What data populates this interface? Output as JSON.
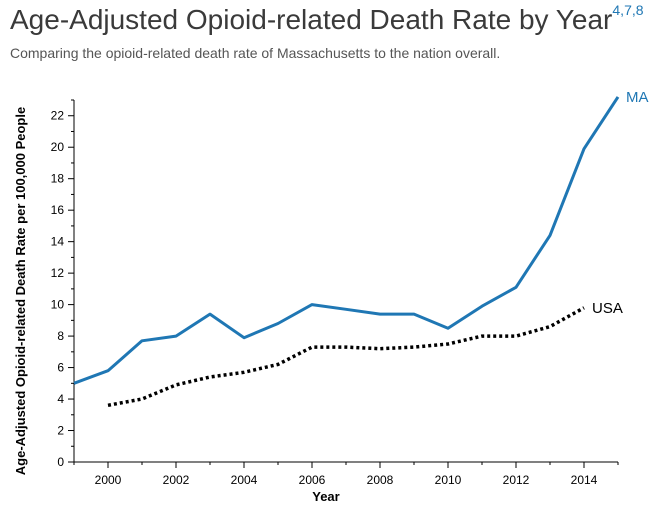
{
  "header": {
    "title": "Age-Adjusted Opioid-related Death Rate by Year",
    "footnotes": "4,7,8",
    "subtitle": "Comparing the opioid-related death rate of Massachusetts to the nation overall."
  },
  "colors": {
    "ma": "#1f77b4",
    "usa": "#000000",
    "axis": "#000000"
  },
  "chart_data": {
    "type": "line",
    "title": "Age-Adjusted Opioid-related Death Rate by Year",
    "xlabel": "Year",
    "ylabel": "Age-Adjusted Opioid-related Death Rate per 100,000 People",
    "xlim": [
      1999,
      2015
    ],
    "ylim": [
      0,
      23
    ],
    "x_ticks": [
      2000,
      2002,
      2004,
      2006,
      2008,
      2010,
      2012,
      2014
    ],
    "y_ticks": [
      0,
      2,
      4,
      6,
      8,
      10,
      12,
      14,
      16,
      18,
      20,
      22
    ],
    "grid": false,
    "series": [
      {
        "name": "MA",
        "style": "solid",
        "color": "#1f77b4",
        "x": [
          1999,
          2000,
          2001,
          2002,
          2003,
          2004,
          2005,
          2006,
          2007,
          2008,
          2009,
          2010,
          2011,
          2012,
          2013,
          2014,
          2015
        ],
        "values": [
          5.0,
          5.8,
          7.7,
          8.0,
          9.4,
          7.9,
          8.8,
          10.0,
          9.7,
          9.4,
          9.4,
          8.5,
          9.9,
          11.1,
          14.4,
          19.9,
          23.2
        ]
      },
      {
        "name": "USA",
        "style": "dotted",
        "color": "#000000",
        "x": [
          2000,
          2001,
          2002,
          2003,
          2004,
          2005,
          2006,
          2007,
          2008,
          2009,
          2010,
          2011,
          2012,
          2013,
          2014
        ],
        "values": [
          3.6,
          4.0,
          4.9,
          5.4,
          5.7,
          6.2,
          7.3,
          7.3,
          7.2,
          7.3,
          7.5,
          8.0,
          8.0,
          8.6,
          9.8
        ]
      }
    ]
  }
}
